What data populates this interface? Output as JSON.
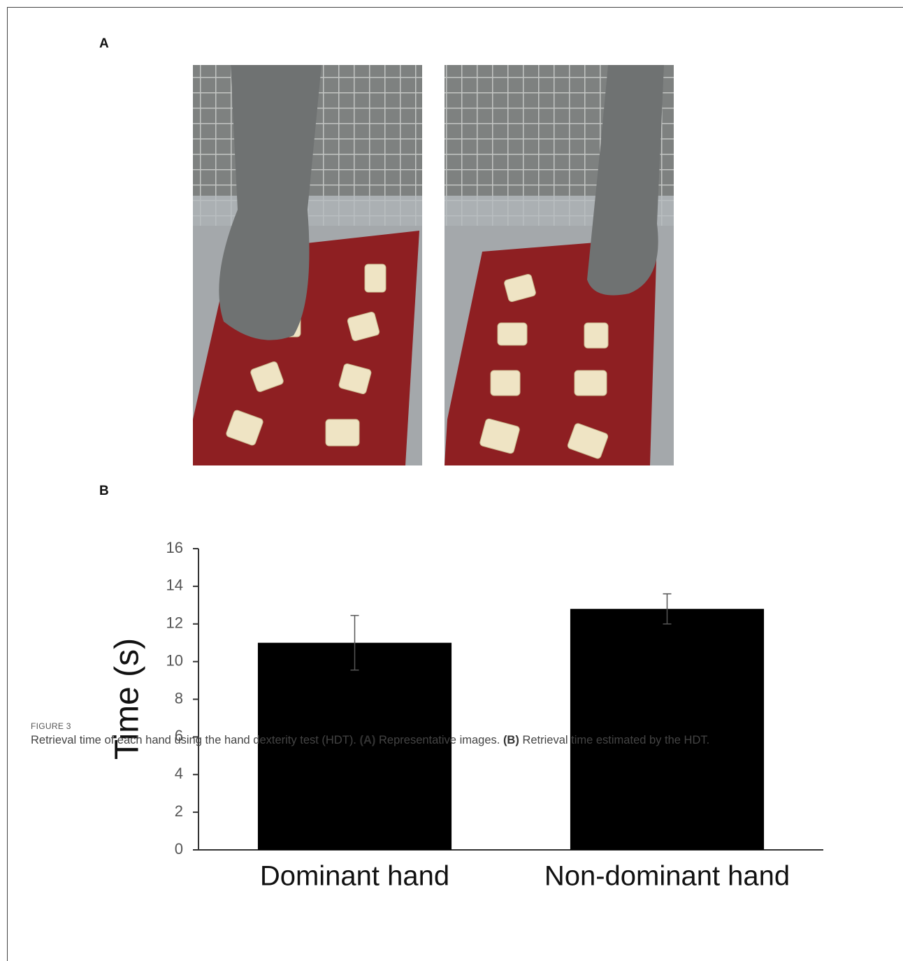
{
  "panel_a": "A",
  "panel_b": "B",
  "chart_data": {
    "type": "bar",
    "ylabel": "Time (s)",
    "categories": [
      "Dominant hand",
      "Non-dominant hand"
    ],
    "values": [
      11.0,
      12.8
    ],
    "errors": [
      1.45,
      0.8
    ],
    "color": "#000000",
    "ylim": [
      0,
      16
    ],
    "yticks": [
      0,
      2,
      4,
      6,
      8,
      10,
      12,
      14,
      16
    ],
    "grid": false
  },
  "caption": {
    "label": "FIGURE 3",
    "parts": [
      "Retrieval time of each hand using the hand dexterity test (HDT).",
      "(A)",
      "Representative images.",
      "(B)",
      "Retrieval time estimated by the HDT."
    ]
  }
}
